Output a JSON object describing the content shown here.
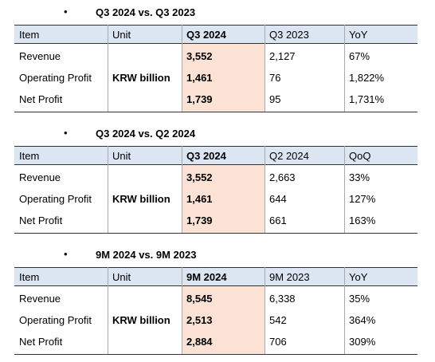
{
  "sections": [
    {
      "title": "Q3 2024 vs. Q3 2023",
      "columns": [
        "Item",
        "Unit",
        "Q3 2024",
        "Q3 2023",
        "YoY"
      ],
      "unit": "KRW billion",
      "rows": [
        {
          "item": "Revenue",
          "values": [
            "3,552",
            "2,127",
            "67%"
          ]
        },
        {
          "item": "Operating Profit",
          "values": [
            "1,461",
            "76",
            "1,822%"
          ]
        },
        {
          "item": "Net Profit",
          "values": [
            "1,739",
            "95",
            "1,731%"
          ]
        }
      ]
    },
    {
      "title": "Q3 2024 vs. Q2 2024",
      "columns": [
        "Item",
        "Unit",
        "Q3 2024",
        "Q2 2024",
        "QoQ"
      ],
      "unit": "KRW billion",
      "rows": [
        {
          "item": "Revenue",
          "values": [
            "3,552",
            "2,663",
            "33%"
          ]
        },
        {
          "item": "Operating Profit",
          "values": [
            "1,461",
            "644",
            "127%"
          ]
        },
        {
          "item": "Net Profit",
          "values": [
            "1,739",
            "661",
            "163%"
          ]
        }
      ]
    },
    {
      "title": "9M 2024 vs. 9M 2023",
      "columns": [
        "Item",
        "Unit",
        "9M 2024",
        "9M 2023",
        "YoY"
      ],
      "unit": "KRW billion",
      "rows": [
        {
          "item": "Revenue",
          "values": [
            "8,545",
            "6,338",
            "35%"
          ]
        },
        {
          "item": "Operating Profit",
          "values": [
            "2,513",
            "542",
            "364%"
          ]
        },
        {
          "item": "Net Profit",
          "values": [
            "2,884",
            "706",
            "309%"
          ]
        }
      ]
    }
  ]
}
